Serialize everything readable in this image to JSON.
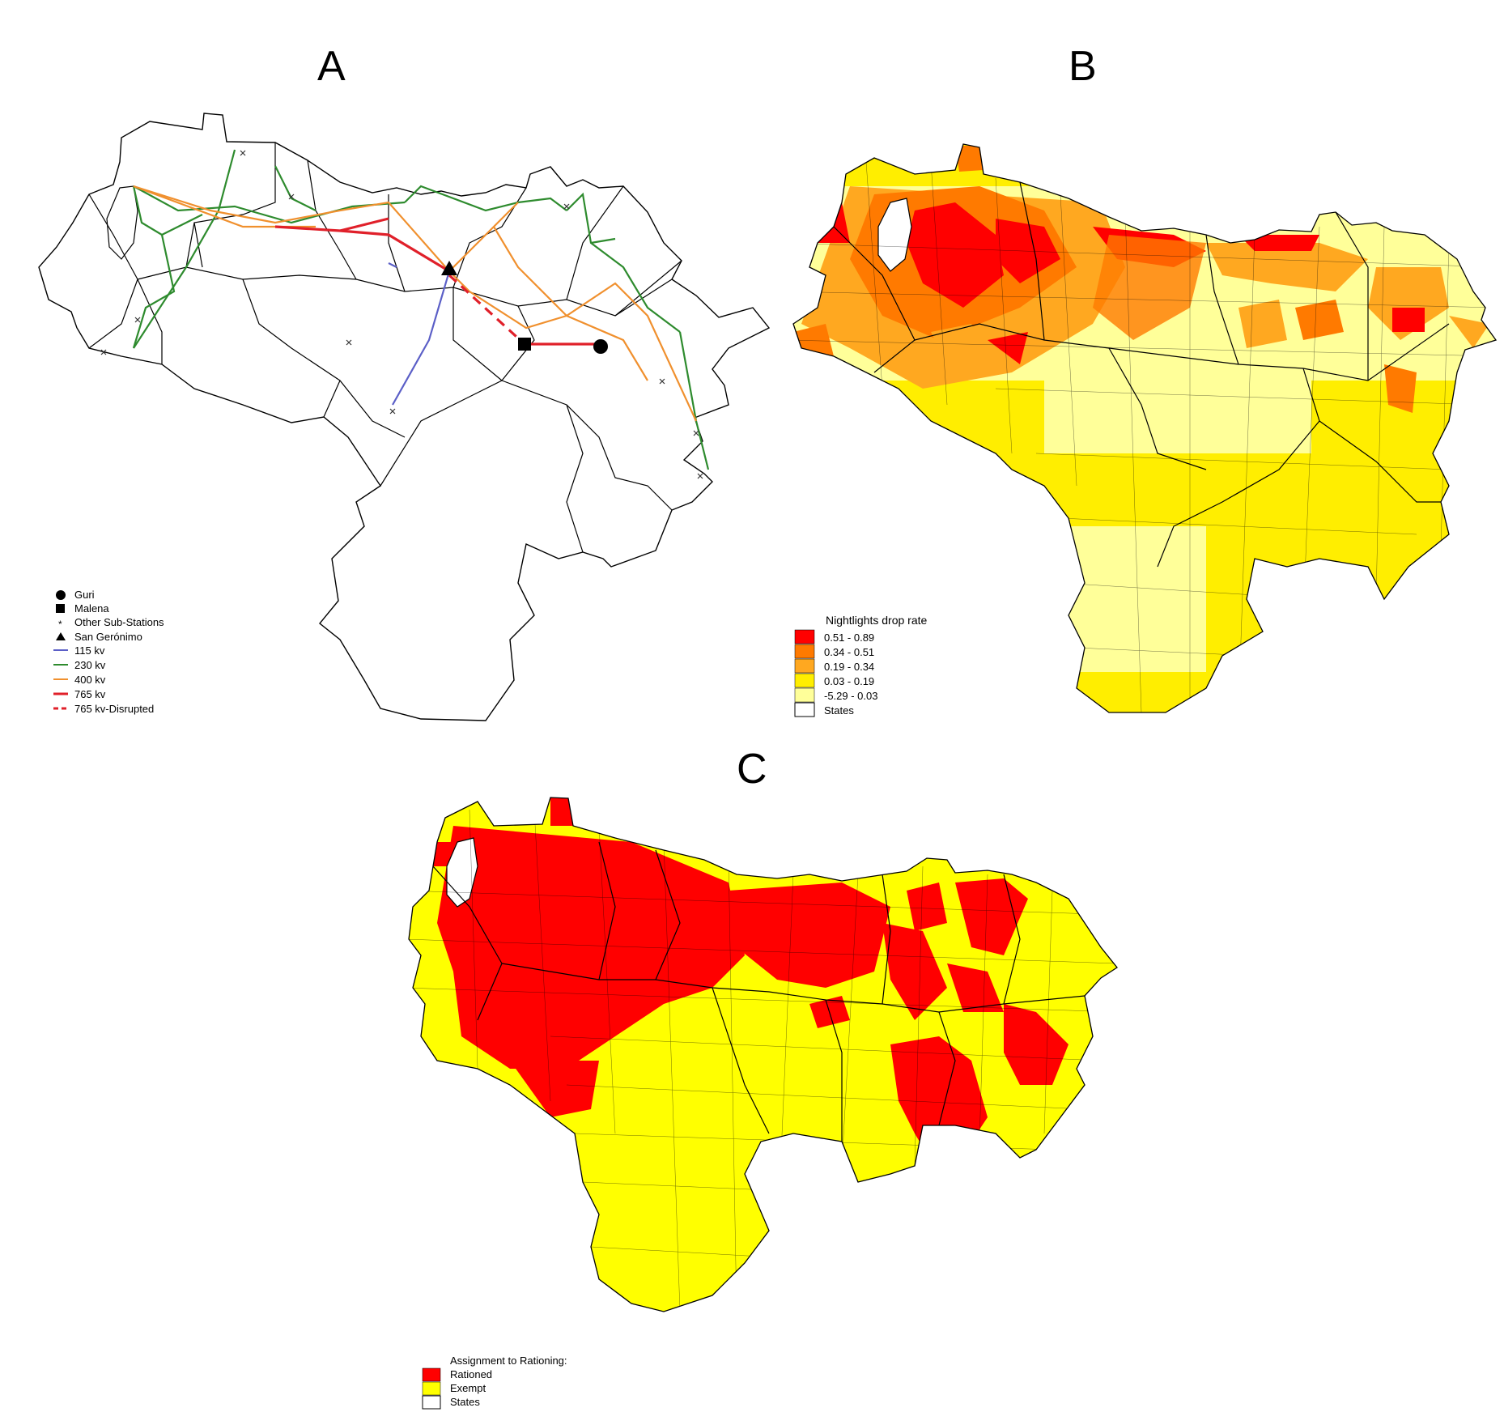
{
  "panels": {
    "a": {
      "letter": "A",
      "legend": {
        "guri": "Guri",
        "malena": "Malena",
        "other_substations": "Other Sub-Stations",
        "san_geronimo": "San Gerónimo",
        "kv115": "115 kv",
        "kv230": "230 kv",
        "kv400": "400 kv",
        "kv765": "765 kv",
        "kv765_disrupted": "765 kv-Disrupted"
      }
    },
    "b": {
      "letter": "B",
      "legend": {
        "title": "Nightlights drop rate",
        "classes": [
          "0.51 - 0.89",
          "0.34 - 0.51",
          "0.19 - 0.34",
          "0.03 - 0.19",
          "-5.29 - 0.03"
        ],
        "states": "States"
      }
    },
    "c": {
      "letter": "C",
      "legend": {
        "title": "Assignment to Rationing:",
        "rationed": "Rationed",
        "exempt": "Exempt",
        "states": "States"
      }
    }
  },
  "colors": {
    "kv115": "#5b5fc7",
    "kv230": "#2e8b2e",
    "kv400": "#f0902e",
    "kv765": "#e0202a",
    "class1": "#ff0000",
    "class2": "#ff7a00",
    "class3": "#ffa820",
    "class4": "#ffee00",
    "class5": "#ffff99",
    "rationed": "#ff0000",
    "exempt": "#ffff00"
  }
}
